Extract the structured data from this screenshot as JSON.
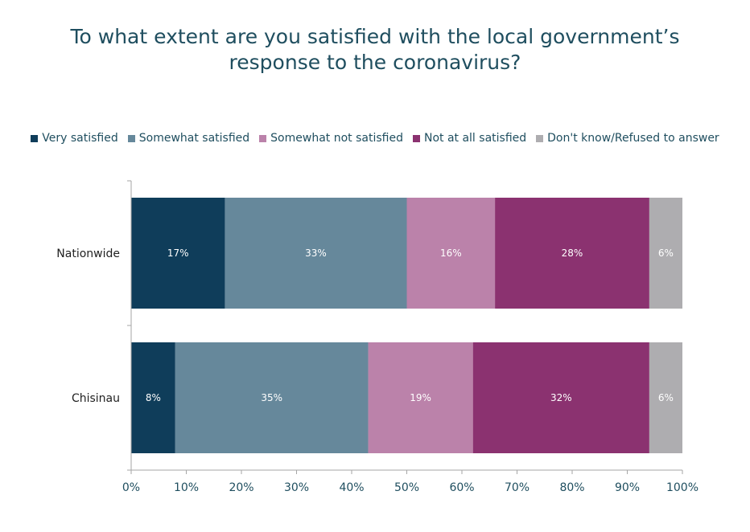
{
  "chart_data": {
    "type": "bar",
    "orientation": "horizontal",
    "stacked": true,
    "title": [
      "To what extent are you satisfied with the local government’s",
      "response to the coronavirus?"
    ],
    "categories": [
      "Nationwide",
      "Chisinau"
    ],
    "series": [
      {
        "name": "Very satisfied",
        "color": "#0f3d5a",
        "values": [
          17,
          8
        ],
        "labels": [
          "17%",
          "8%"
        ]
      },
      {
        "name": "Somewhat satisfied",
        "color": "#66889b",
        "values": [
          33,
          35
        ],
        "labels": [
          "33%",
          "35%"
        ]
      },
      {
        "name": "Somewhat not satisfied",
        "color": "#bb82aa",
        "values": [
          16,
          19
        ],
        "labels": [
          "16%",
          "19%"
        ]
      },
      {
        "name": "Not at all satisfied",
        "color": "#8b3270",
        "values": [
          28,
          32
        ],
        "labels": [
          "28%",
          "32%"
        ]
      },
      {
        "name": "Don't know/Refused to answer",
        "color": "#aeadb0",
        "values": [
          6,
          6
        ],
        "labels": [
          "6%",
          "6%"
        ]
      }
    ],
    "xlim": [
      0,
      100
    ],
    "xticks": [
      "0%",
      "10%",
      "20%",
      "30%",
      "40%",
      "50%",
      "60%",
      "70%",
      "80%",
      "90%",
      "100%"
    ],
    "legend_position": "top",
    "grid": false
  }
}
